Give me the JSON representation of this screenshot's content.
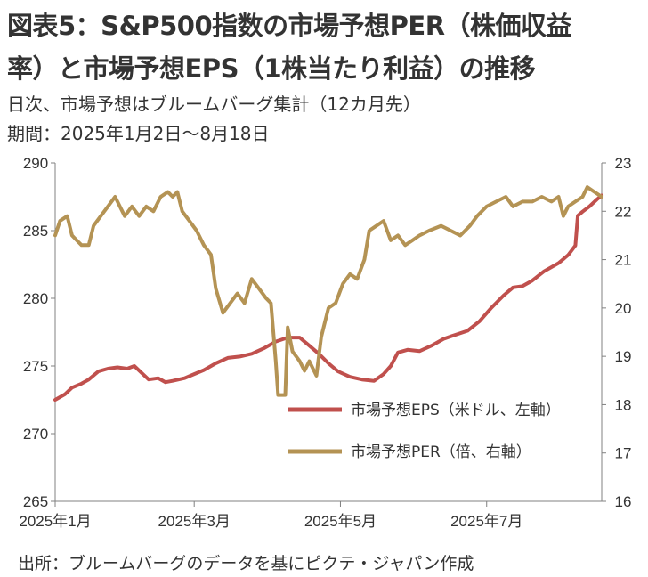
{
  "title_line1": "図表5：S&P500指数の市場予想PER（株価収益",
  "title_line2": "率）と市場予想EPS（1株当たり利益）の推移",
  "subtitle_line1": "日次、市場予想はブルームバーグ集計（12カ月先）",
  "subtitle_line2": "期間：2025年1月2日～8月18日",
  "source": "出所：ブルームバーグのデータを基にピクテ・ジャパン作成",
  "chart_data": {
    "type": "line",
    "x_tick_labels": [
      "2025年1月",
      "2025年3月",
      "2025年5月",
      "2025年7月"
    ],
    "x_ticks": [
      "2025-01-02",
      "2025-03-01",
      "2025-05-01",
      "2025-07-01"
    ],
    "x_range": [
      "2025-01-02",
      "2025-08-18"
    ],
    "y_left": {
      "min": 265,
      "max": 290,
      "step": 5,
      "tick_labels": [
        "265",
        "270",
        "275",
        "280",
        "285",
        "290"
      ]
    },
    "y_right": {
      "min": 16,
      "max": 23,
      "step": 1,
      "tick_labels": [
        "16",
        "17",
        "18",
        "19",
        "20",
        "21",
        "22",
        "23"
      ]
    },
    "grid": false,
    "legend_position": "lower-right",
    "series": [
      {
        "name": "市場予想EPS（米ドル、左軸）",
        "axis": "left",
        "color": "#c0504d",
        "points": [
          [
            "2025-01-02",
            272.5
          ],
          [
            "2025-01-06",
            272.9
          ],
          [
            "2025-01-09",
            273.4
          ],
          [
            "2025-01-13",
            273.7
          ],
          [
            "2025-01-16",
            274.0
          ],
          [
            "2025-01-20",
            274.6
          ],
          [
            "2025-01-24",
            274.8
          ],
          [
            "2025-01-28",
            274.9
          ],
          [
            "2025-02-01",
            274.8
          ],
          [
            "2025-02-04",
            275.0
          ],
          [
            "2025-02-07",
            274.5
          ],
          [
            "2025-02-10",
            274.0
          ],
          [
            "2025-02-14",
            274.1
          ],
          [
            "2025-02-17",
            273.8
          ],
          [
            "2025-02-20",
            273.9
          ],
          [
            "2025-02-25",
            274.1
          ],
          [
            "2025-03-01",
            274.4
          ],
          [
            "2025-03-05",
            274.7
          ],
          [
            "2025-03-10",
            275.2
          ],
          [
            "2025-03-15",
            275.6
          ],
          [
            "2025-03-20",
            275.7
          ],
          [
            "2025-03-25",
            275.9
          ],
          [
            "2025-03-30",
            276.3
          ],
          [
            "2025-04-04",
            276.8
          ],
          [
            "2025-04-09",
            277.1
          ],
          [
            "2025-04-14",
            277.1
          ],
          [
            "2025-04-18",
            276.5
          ],
          [
            "2025-04-22",
            275.9
          ],
          [
            "2025-04-26",
            275.2
          ],
          [
            "2025-04-30",
            274.6
          ],
          [
            "2025-05-05",
            274.2
          ],
          [
            "2025-05-10",
            274.0
          ],
          [
            "2025-05-15",
            273.9
          ],
          [
            "2025-05-19",
            274.4
          ],
          [
            "2025-05-22",
            275.0
          ],
          [
            "2025-05-25",
            276.0
          ],
          [
            "2025-05-29",
            276.2
          ],
          [
            "2025-06-03",
            276.1
          ],
          [
            "2025-06-08",
            276.5
          ],
          [
            "2025-06-13",
            277.0
          ],
          [
            "2025-06-18",
            277.3
          ],
          [
            "2025-06-23",
            277.6
          ],
          [
            "2025-06-28",
            278.3
          ],
          [
            "2025-07-03",
            279.3
          ],
          [
            "2025-07-08",
            280.2
          ],
          [
            "2025-07-12",
            280.8
          ],
          [
            "2025-07-16",
            280.9
          ],
          [
            "2025-07-20",
            281.3
          ],
          [
            "2025-07-25",
            282.0
          ],
          [
            "2025-07-31",
            282.6
          ],
          [
            "2025-08-04",
            283.2
          ],
          [
            "2025-08-07",
            283.9
          ],
          [
            "2025-08-08",
            286.1
          ],
          [
            "2025-08-10",
            286.4
          ],
          [
            "2025-08-13",
            286.8
          ],
          [
            "2025-08-16",
            287.3
          ],
          [
            "2025-08-18",
            287.6
          ]
        ]
      },
      {
        "name": "市場予想PER（倍、右軸）",
        "axis": "right",
        "color": "#b49354",
        "points": [
          [
            "2025-01-02",
            21.5
          ],
          [
            "2025-01-04",
            21.8
          ],
          [
            "2025-01-07",
            21.9
          ],
          [
            "2025-01-09",
            21.5
          ],
          [
            "2025-01-11",
            21.4
          ],
          [
            "2025-01-13",
            21.3
          ],
          [
            "2025-01-16",
            21.3
          ],
          [
            "2025-01-18",
            21.7
          ],
          [
            "2025-01-21",
            21.9
          ],
          [
            "2025-01-24",
            22.1
          ],
          [
            "2025-01-27",
            22.3
          ],
          [
            "2025-01-29",
            22.1
          ],
          [
            "2025-01-31",
            21.9
          ],
          [
            "2025-02-03",
            22.1
          ],
          [
            "2025-02-06",
            21.9
          ],
          [
            "2025-02-09",
            22.1
          ],
          [
            "2025-02-12",
            22.0
          ],
          [
            "2025-02-15",
            22.3
          ],
          [
            "2025-02-18",
            22.4
          ],
          [
            "2025-02-20",
            22.3
          ],
          [
            "2025-02-22",
            22.4
          ],
          [
            "2025-02-24",
            22.0
          ],
          [
            "2025-02-27",
            21.8
          ],
          [
            "2025-03-02",
            21.6
          ],
          [
            "2025-03-05",
            21.3
          ],
          [
            "2025-03-08",
            21.1
          ],
          [
            "2025-03-10",
            20.4
          ],
          [
            "2025-03-13",
            19.9
          ],
          [
            "2025-03-16",
            20.1
          ],
          [
            "2025-03-19",
            20.3
          ],
          [
            "2025-03-22",
            20.1
          ],
          [
            "2025-03-25",
            20.6
          ],
          [
            "2025-03-28",
            20.4
          ],
          [
            "2025-03-31",
            20.2
          ],
          [
            "2025-04-02",
            20.1
          ],
          [
            "2025-04-04",
            18.9
          ],
          [
            "2025-04-05",
            18.2
          ],
          [
            "2025-04-08",
            18.2
          ],
          [
            "2025-04-09",
            19.6
          ],
          [
            "2025-04-11",
            19.1
          ],
          [
            "2025-04-14",
            18.9
          ],
          [
            "2025-04-16",
            18.7
          ],
          [
            "2025-04-18",
            18.9
          ],
          [
            "2025-04-21",
            18.6
          ],
          [
            "2025-04-23",
            19.4
          ],
          [
            "2025-04-26",
            20.0
          ],
          [
            "2025-04-29",
            20.1
          ],
          [
            "2025-05-02",
            20.5
          ],
          [
            "2025-05-05",
            20.7
          ],
          [
            "2025-05-08",
            20.6
          ],
          [
            "2025-05-11",
            21.0
          ],
          [
            "2025-05-13",
            21.6
          ],
          [
            "2025-05-16",
            21.7
          ],
          [
            "2025-05-19",
            21.8
          ],
          [
            "2025-05-22",
            21.4
          ],
          [
            "2025-05-25",
            21.5
          ],
          [
            "2025-05-28",
            21.3
          ],
          [
            "2025-05-31",
            21.4
          ],
          [
            "2025-06-03",
            21.5
          ],
          [
            "2025-06-07",
            21.6
          ],
          [
            "2025-06-12",
            21.7
          ],
          [
            "2025-06-16",
            21.6
          ],
          [
            "2025-06-20",
            21.5
          ],
          [
            "2025-06-24",
            21.7
          ],
          [
            "2025-06-27",
            21.9
          ],
          [
            "2025-07-01",
            22.1
          ],
          [
            "2025-07-05",
            22.2
          ],
          [
            "2025-07-09",
            22.3
          ],
          [
            "2025-07-12",
            22.1
          ],
          [
            "2025-07-16",
            22.2
          ],
          [
            "2025-07-20",
            22.2
          ],
          [
            "2025-07-24",
            22.3
          ],
          [
            "2025-07-28",
            22.2
          ],
          [
            "2025-07-31",
            22.3
          ],
          [
            "2025-08-02",
            21.9
          ],
          [
            "2025-08-04",
            22.1
          ],
          [
            "2025-08-07",
            22.2
          ],
          [
            "2025-08-10",
            22.3
          ],
          [
            "2025-08-12",
            22.5
          ],
          [
            "2025-08-15",
            22.4
          ],
          [
            "2025-08-18",
            22.3
          ]
        ]
      }
    ]
  }
}
